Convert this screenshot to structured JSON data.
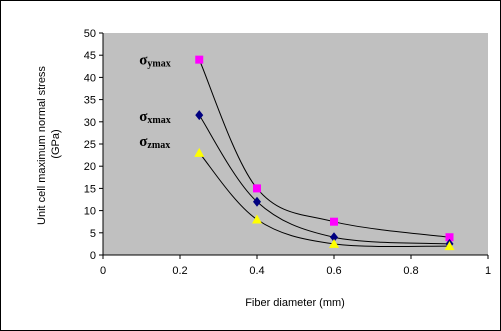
{
  "chart_data": {
    "type": "scatter",
    "title": "",
    "xlabel": "Fiber diameter (mm)",
    "ylabel": "Unit cell maximum normal stress\n(GPa)",
    "xlim": [
      0,
      1
    ],
    "ylim": [
      0,
      50
    ],
    "xticks": [
      "0",
      "0.2",
      "0.4",
      "0.6",
      "0.8",
      "1"
    ],
    "yticks": [
      "0",
      "5",
      "10",
      "15",
      "20",
      "25",
      "30",
      "35",
      "40",
      "45",
      "50"
    ],
    "grid": false,
    "plot_background": "#c0c0c0",
    "smoothed_lines": true,
    "series": [
      {
        "name": "σymax",
        "symbol": "σ",
        "subscript": "ymax",
        "marker": "square",
        "color": "#ff00ff",
        "x": [
          0.25,
          0.4,
          0.6,
          0.9
        ],
        "y": [
          44,
          15,
          7.5,
          4
        ]
      },
      {
        "name": "σxmax",
        "symbol": "σ",
        "subscript": "xmax",
        "marker": "diamond",
        "color": "#000080",
        "x": [
          0.25,
          0.4,
          0.6,
          0.9
        ],
        "y": [
          31.5,
          12,
          4,
          2.5
        ]
      },
      {
        "name": "σzmax",
        "symbol": "σ",
        "subscript": "zmax",
        "marker": "triangle",
        "color": "#ffff00",
        "x": [
          0.25,
          0.4,
          0.6,
          0.9
        ],
        "y": [
          23,
          8,
          2.5,
          2
        ]
      }
    ]
  }
}
